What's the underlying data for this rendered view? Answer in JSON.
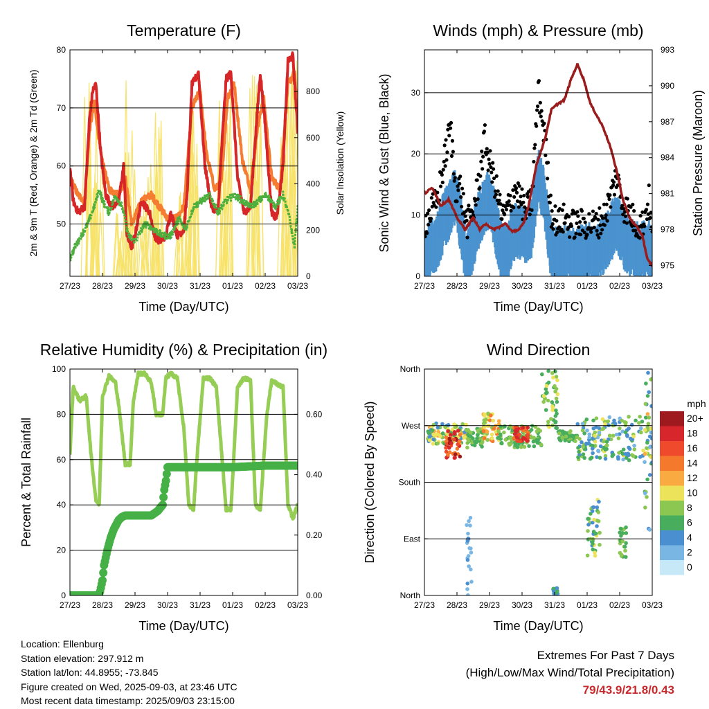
{
  "footer": {
    "location": "Location: Ellenburg",
    "elevation": "Station elevation: 297.912 m",
    "latlon": "Station lat/lon: 44.8955; -73.845",
    "created": "Figure created on Wed, 2025-09-03, at 23:46 UTC",
    "recent": "Most recent data timestamp: 2025/09/03 23:15:00"
  },
  "extremes": {
    "title": "Extremes For Past 7 Days",
    "subtitle": "(High/Low/Max Wind/Total Precipitation)",
    "values": "79/43.9/21.8/0.43"
  },
  "colors": {
    "temp2m": "#d62628",
    "temp9m": "#f47d31",
    "dewpoint": "#4daf3e",
    "solar": "#f7e36b",
    "wind": "#4a93cf",
    "gust": "#000000",
    "pressure": "#9b1c1c",
    "rh": "#95cd55",
    "precip": "#45b046"
  },
  "chart_data": [
    {
      "type": "line",
      "title": "Temperature (F)",
      "xlabel": "Time (Day/UTC)",
      "ylabel": "2m & 9m T (Red, Orange) & 2m Td (Green)",
      "y2label": "Solar Insolation (Yellow)",
      "x_ticks": [
        "27/23",
        "28/23",
        "29/23",
        "30/23",
        "31/23",
        "01/23",
        "02/23",
        "03/23"
      ],
      "xlim": [
        0,
        7
      ],
      "ylim": [
        41,
        80
      ],
      "y_ticks": [
        50,
        60,
        70,
        80
      ],
      "y2lim": [
        0,
        980
      ],
      "y2_ticks": [
        0,
        200,
        400,
        600,
        800
      ],
      "grid": "horizontal",
      "series": [
        {
          "name": "2m T",
          "color": "#d62628",
          "axis": "left",
          "x": [
            0,
            0.1,
            0.25,
            0.45,
            0.6,
            0.7,
            0.8,
            0.95,
            1.1,
            1.3,
            1.5,
            1.65,
            1.75,
            1.9,
            2.0,
            2.2,
            2.45,
            2.6,
            2.75,
            2.95,
            3.1,
            3.3,
            3.5,
            3.6,
            3.75,
            3.95,
            4.15,
            4.35,
            4.55,
            4.65,
            4.8,
            4.95,
            5.15,
            5.35,
            5.55,
            5.7,
            5.85,
            6.0,
            6.2,
            6.35,
            6.55,
            6.7,
            6.85,
            7.0
          ],
          "y": [
            60,
            54,
            52,
            53,
            68,
            73,
            74,
            62,
            55,
            53,
            54,
            60,
            48,
            46,
            48,
            54,
            52,
            48,
            47,
            48,
            52,
            48,
            49,
            55,
            74,
            76,
            60,
            53,
            52,
            62,
            75,
            76,
            58,
            52,
            53,
            65,
            76,
            67,
            52,
            51,
            60,
            78,
            79,
            66
          ]
        },
        {
          "name": "9m T",
          "color": "#f47d31",
          "axis": "left",
          "x": [
            0,
            0.25,
            0.45,
            0.6,
            0.75,
            0.95,
            1.2,
            1.5,
            1.7,
            1.9,
            2.2,
            2.5,
            2.75,
            3.0,
            3.3,
            3.5,
            3.75,
            4.0,
            4.2,
            4.45,
            4.65,
            4.85,
            5.05,
            5.3,
            5.55,
            5.75,
            5.95,
            6.2,
            6.45,
            6.7,
            6.9,
            7.0
          ],
          "y": [
            58,
            55,
            54,
            66,
            71,
            62,
            56,
            55,
            58,
            50,
            54,
            55,
            53,
            51,
            51,
            53,
            70,
            73,
            62,
            56,
            57,
            72,
            74,
            61,
            56,
            66,
            72,
            58,
            56,
            74,
            76,
            69
          ]
        },
        {
          "name": "2m Td",
          "color": "#4daf3e",
          "axis": "left",
          "x": [
            0,
            0.15,
            0.35,
            0.55,
            0.75,
            0.9,
            1.0,
            1.2,
            1.4,
            1.6,
            1.8,
            2.0,
            2.3,
            2.6,
            2.85,
            3.1,
            3.35,
            3.55,
            3.8,
            4.05,
            4.3,
            4.55,
            4.8,
            5.05,
            5.3,
            5.55,
            5.8,
            6.05,
            6.3,
            6.55,
            6.75,
            6.9,
            7.0
          ],
          "y": [
            44,
            46,
            48,
            50,
            53,
            56,
            54,
            52,
            55,
            53,
            48,
            47,
            50,
            49,
            48,
            48,
            51,
            49,
            53,
            54,
            55,
            52,
            54,
            55,
            54,
            53,
            54,
            55,
            53,
            55,
            51,
            46,
            53
          ]
        },
        {
          "name": "Solar",
          "color": "#f7e36b",
          "axis": "right",
          "style": "spiky",
          "peaks": [
            [
              0.55,
              840
            ],
            [
              0.7,
              760
            ],
            [
              0.85,
              600
            ],
            [
              1.45,
              300
            ],
            [
              1.75,
              880
            ],
            [
              1.9,
              700
            ],
            [
              2.3,
              380
            ],
            [
              2.55,
              560
            ],
            [
              2.75,
              740
            ],
            [
              3.45,
              400
            ],
            [
              3.7,
              850
            ],
            [
              3.85,
              900
            ],
            [
              4.7,
              820
            ],
            [
              4.85,
              960
            ],
            [
              5.65,
              880
            ],
            [
              5.8,
              940
            ],
            [
              6.6,
              900
            ],
            [
              6.75,
              860
            ],
            [
              6.9,
              940
            ]
          ]
        }
      ]
    },
    {
      "type": "line",
      "title": "Winds (mph) & Pressure (mb)",
      "xlabel": "Time (Day/UTC)",
      "ylabel": "Sonic Wind & Gust (Blue, Black)",
      "y2label": "Station Pressure (Maroon)",
      "x_ticks": [
        "27/23",
        "28/23",
        "29/23",
        "30/23",
        "31/23",
        "01/23",
        "02/23",
        "03/23"
      ],
      "xlim": [
        0,
        7
      ],
      "ylim": [
        0,
        37
      ],
      "y_ticks": [
        0,
        10,
        20,
        30
      ],
      "y2lim": [
        974.1,
        993
      ],
      "y2_ticks": [
        975,
        978,
        981,
        984,
        987,
        990,
        993
      ],
      "grid": "horizontal",
      "series": [
        {
          "name": "Sonic Wind",
          "color": "#4a93cf",
          "axis": "left",
          "x": [
            0,
            0.2,
            0.4,
            0.6,
            0.8,
            0.95,
            1.1,
            1.3,
            1.5,
            1.7,
            1.85,
            2.0,
            2.2,
            2.4,
            2.6,
            2.8,
            2.95,
            3.1,
            3.3,
            3.5,
            3.7,
            3.9,
            4.1,
            4.3,
            4.5,
            4.7,
            4.9,
            5.1,
            5.3,
            5.5,
            5.7,
            5.9,
            6.1,
            6.3,
            6.5,
            6.7,
            6.9,
            7.0
          ],
          "y": [
            3,
            6,
            7,
            10,
            12,
            14,
            10,
            3,
            7,
            11,
            12,
            14,
            9,
            4,
            6,
            9,
            8,
            7,
            9,
            18,
            13,
            5,
            4,
            5,
            4,
            4,
            5,
            5,
            5,
            6,
            8,
            10,
            7,
            6,
            5,
            5,
            6,
            3
          ]
        },
        {
          "name": "Gust",
          "color": "#000000",
          "axis": "left",
          "x": [
            0,
            0.2,
            0.4,
            0.6,
            0.8,
            0.95,
            1.1,
            1.3,
            1.5,
            1.7,
            1.85,
            2.0,
            2.2,
            2.4,
            2.6,
            2.8,
            2.95,
            3.1,
            3.3,
            3.5,
            3.7,
            3.9,
            4.1,
            4.3,
            4.5,
            4.7,
            4.9,
            5.1,
            5.3,
            5.5,
            5.7,
            5.9,
            6.1,
            6.3,
            6.5,
            6.7,
            6.9,
            7.0
          ],
          "y": [
            8,
            10,
            12,
            18,
            24,
            14,
            14,
            8,
            10,
            16,
            22,
            18,
            14,
            9,
            11,
            14,
            12,
            10,
            12,
            30,
            22,
            10,
            8,
            9,
            8,
            8,
            8,
            8,
            8,
            9,
            12,
            16,
            11,
            10,
            8,
            8,
            12,
            6
          ]
        },
        {
          "name": "Pressure",
          "color": "#9b1c1c",
          "axis": "right",
          "x": [
            0,
            0.25,
            0.5,
            0.75,
            1.0,
            1.25,
            1.5,
            1.7,
            1.9,
            2.1,
            2.3,
            2.5,
            2.7,
            2.9,
            3.05,
            3.2,
            3.45,
            3.7,
            3.9,
            4.1,
            4.3,
            4.5,
            4.7,
            4.9,
            5.1,
            5.3,
            5.5,
            5.7,
            5.9,
            6.1,
            6.3,
            6.5,
            6.7,
            6.85,
            7.0
          ],
          "y": [
            981,
            981.5,
            980,
            980.5,
            979,
            978,
            979,
            978,
            978.5,
            978,
            978.2,
            978.5,
            977.8,
            978,
            978.5,
            980,
            983.5,
            985.5,
            988,
            988.5,
            988.8,
            990.5,
            991.8,
            990.5,
            988.5,
            987.5,
            986.5,
            985,
            983,
            980.5,
            979,
            978.3,
            977.5,
            975.5,
            975
          ]
        }
      ]
    },
    {
      "type": "line",
      "title": "Relative Humidity (%) & Precipitation (in)",
      "xlabel": "Time (Day/UTC)",
      "ylabel": "Percent & Total Rainfall",
      "x_ticks": [
        "27/23",
        "28/23",
        "29/23",
        "30/23",
        "31/23",
        "01/23",
        "02/23",
        "03/23"
      ],
      "xlim": [
        0,
        7
      ],
      "ylim": [
        0,
        100
      ],
      "y_ticks": [
        0,
        20,
        40,
        60,
        80,
        100
      ],
      "y2lim": [
        0,
        0.75
      ],
      "y2_ticks": [
        "0.00",
        "0.20",
        "0.40",
        "0.60"
      ],
      "grid": "horizontal",
      "series": [
        {
          "name": "RH",
          "color": "#95cd55",
          "axis": "left",
          "x": [
            0,
            0.1,
            0.3,
            0.5,
            0.65,
            0.8,
            0.9,
            1.0,
            1.2,
            1.4,
            1.5,
            1.7,
            1.85,
            1.95,
            2.1,
            2.3,
            2.5,
            2.65,
            2.85,
            2.95,
            3.1,
            3.3,
            3.5,
            3.65,
            3.8,
            3.9,
            4.1,
            4.3,
            4.5,
            4.7,
            4.8,
            4.95,
            5.15,
            5.35,
            5.55,
            5.7,
            5.85,
            6.05,
            6.2,
            6.4,
            6.55,
            6.7,
            6.85,
            7.0
          ],
          "y": [
            62,
            92,
            86,
            88,
            62,
            42,
            40,
            88,
            97,
            94,
            84,
            58,
            58,
            86,
            98,
            98,
            94,
            80,
            80,
            96,
            98,
            96,
            74,
            40,
            38,
            60,
            96,
            96,
            92,
            56,
            38,
            38,
            92,
            96,
            95,
            40,
            38,
            80,
            95,
            93,
            92,
            40,
            34,
            40
          ]
        },
        {
          "name": "Total Precipitation",
          "color": "#45b046",
          "axis": "right",
          "x": [
            0,
            0.5,
            0.9,
            1.0,
            1.05,
            1.15,
            1.25,
            1.35,
            1.5,
            1.6,
            1.7,
            1.9,
            2.2,
            2.5,
            2.7,
            2.85,
            2.9,
            2.95,
            3.0,
            3.5,
            4.0,
            5.0,
            6.0,
            7.0
          ],
          "y": [
            0,
            0,
            0,
            0.05,
            0.1,
            0.15,
            0.19,
            0.22,
            0.25,
            0.26,
            0.265,
            0.265,
            0.265,
            0.265,
            0.28,
            0.3,
            0.35,
            0.38,
            0.425,
            0.425,
            0.425,
            0.425,
            0.43,
            0.43
          ]
        }
      ]
    },
    {
      "type": "scatter",
      "title": "Wind Direction",
      "xlabel": "Time (Day/UTC)",
      "ylabel": "Direction (Colored By Speed)",
      "x_ticks": [
        "27/23",
        "28/23",
        "29/23",
        "30/23",
        "31/23",
        "01/23",
        "02/23",
        "03/23"
      ],
      "xlim": [
        0,
        7
      ],
      "ylim": [
        0,
        360
      ],
      "y_ticks": [
        {
          "v": 0,
          "label": "North"
        },
        {
          "v": 90,
          "label": "East"
        },
        {
          "v": 180,
          "label": "South"
        },
        {
          "v": 270,
          "label": "West"
        },
        {
          "v": 360,
          "label": "North"
        }
      ],
      "grid": "horizontal",
      "legend": {
        "title": "mph",
        "labels": [
          "20+",
          "18",
          "16",
          "14",
          "12",
          "10",
          "8",
          "6",
          "4",
          "2",
          "0"
        ],
        "colors": [
          "#9e1a1e",
          "#d7272c",
          "#ee4a2b",
          "#f4792c",
          "#f9ab42",
          "#ede35a",
          "#8cc751",
          "#48ad5d",
          "#4a8fcf",
          "#79b6e4",
          "#c6e8f7"
        ]
      },
      "clusters": [
        {
          "x": [
            0.1,
            1.3
          ],
          "dir": [
            240,
            275
          ],
          "speed": [
            4,
            12
          ]
        },
        {
          "x": [
            0.65,
            1.1
          ],
          "dir": [
            215,
            265
          ],
          "speed": [
            13,
            20
          ]
        },
        {
          "x": [
            1.3,
            1.8
          ],
          "dir": [
            235,
            265
          ],
          "speed": [
            5,
            9
          ]
        },
        {
          "x": [
            1.8,
            2.3
          ],
          "dir": [
            245,
            290
          ],
          "speed": [
            8,
            15
          ]
        },
        {
          "x": [
            2.25,
            3.6
          ],
          "dir": [
            235,
            270
          ],
          "speed": [
            5,
            9
          ]
        },
        {
          "x": [
            2.75,
            3.2
          ],
          "dir": [
            245,
            268
          ],
          "speed": [
            14,
            19
          ]
        },
        {
          "x": [
            3.6,
            4.1
          ],
          "dir": [
            265,
            360
          ],
          "speed": [
            5,
            10
          ]
        },
        {
          "x": [
            4.1,
            4.7
          ],
          "dir": [
            245,
            262
          ],
          "speed": [
            5,
            8
          ]
        },
        {
          "x": [
            4.7,
            7.0
          ],
          "dir": [
            215,
            285
          ],
          "speed": [
            2,
            10
          ]
        },
        {
          "x": [
            5.0,
            5.4
          ],
          "dir": [
            60,
            155
          ],
          "speed": [
            3,
            10
          ]
        },
        {
          "x": [
            6.0,
            6.2
          ],
          "dir": [
            60,
            110
          ],
          "speed": [
            5,
            9
          ]
        },
        {
          "x": [
            6.75,
            7.0
          ],
          "dir": [
            100,
            360
          ],
          "speed": [
            2,
            12
          ]
        },
        {
          "x": [
            1.3,
            1.45
          ],
          "dir": [
            0,
            130
          ],
          "speed": [
            1,
            4
          ]
        },
        {
          "x": [
            3.95,
            4.1
          ],
          "dir": [
            0,
            12
          ],
          "speed": [
            4,
            7
          ]
        }
      ]
    }
  ]
}
